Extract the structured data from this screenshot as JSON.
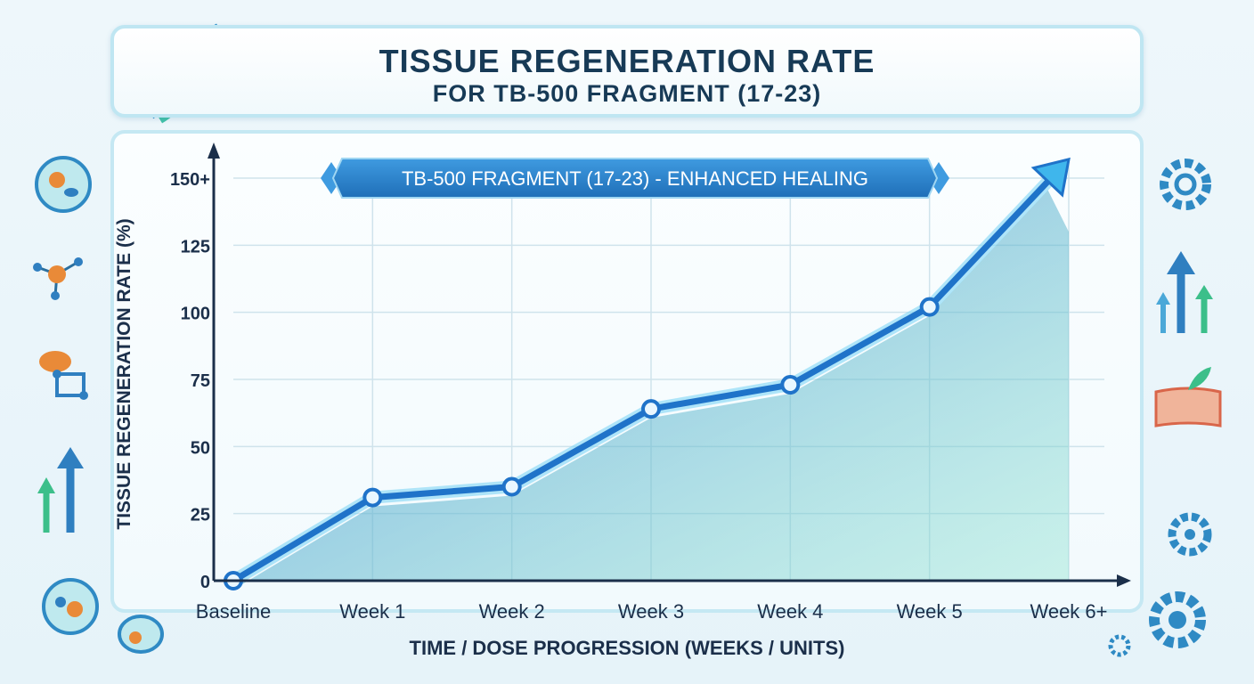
{
  "header": {
    "title_line1": "TISSUE REGENERATION RATE",
    "title_line2": "FOR TB-500 FRAGMENT (17-23)"
  },
  "chart_data": {
    "type": "line",
    "banner_label": "TB-500 FRAGMENT (17-23) - ENHANCED HEALING",
    "xlabel": "TIME / DOSE PROGRESSION (WEEKS / UNITS)",
    "ylabel": "TISSUE REGENERATION RATE (%)",
    "categories": [
      "Baseline",
      "Week 1",
      "Week 2",
      "Week 3",
      "Week 4",
      "Week 5",
      "Week 6+"
    ],
    "y_ticks": [
      "0",
      "25",
      "50",
      "75",
      "100",
      "125",
      "150+"
    ],
    "ylim": [
      0,
      150
    ],
    "series": [
      {
        "values": [
          0,
          31,
          35,
          64,
          73,
          102,
          157
        ]
      }
    ],
    "grid": true,
    "colors": {
      "line": "#1f73c9",
      "line_glow": "#4cc9f0",
      "fill_top": "#3a86d6",
      "fill_bottom": "#7fe0c8",
      "axis": "#1b2f4a",
      "text": "#1b2f4a"
    }
  }
}
